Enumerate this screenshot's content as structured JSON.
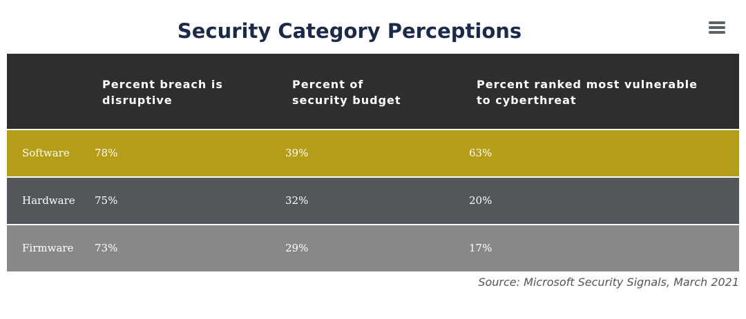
{
  "chart_data": {
    "type": "table",
    "title": "Security Category Perceptions",
    "columns": [
      "",
      "Percent breach is disruptive",
      "Percent of security budget",
      "Percent ranked most vulnerable to cyberthreat"
    ],
    "header": {
      "col1_line1": "Percent breach is",
      "col1_line2": "disruptive",
      "col2_line1": "Percent of",
      "col2_line2": "security budget",
      "col3_line1": "Percent ranked most vulnerable",
      "col3_line2": "to cyberthreat"
    },
    "rows": [
      {
        "label": "Software",
        "values": [
          "78%",
          "39%",
          "63%"
        ],
        "color": "#b59d17"
      },
      {
        "label": "Hardware",
        "values": [
          "75%",
          "32%",
          "20%"
        ],
        "color": "#53575b"
      },
      {
        "label": "Firmware",
        "values": [
          "73%",
          "29%",
          "17%"
        ],
        "color": "#888888"
      }
    ],
    "source": "Source: Microsoft Security Signals, March 2021"
  },
  "colors": {
    "title": "#1c2a4a",
    "header_bg": "#2e2e2e",
    "menu_icon": "#5b5f66"
  },
  "menu_icon": "hamburger-menu-icon"
}
